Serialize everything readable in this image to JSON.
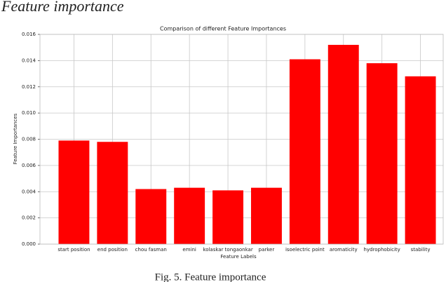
{
  "heading": "Feature importance",
  "caption": "Fig. 5. Feature importance",
  "chart_data": {
    "type": "bar",
    "title": "Comparison of different Feature Importances",
    "x_label": "Feature Labels",
    "y_label": "Feature Importances",
    "categories": [
      "start position",
      "end position",
      "chou fasman",
      "emini",
      "kolaskar tongaonkar",
      "parker",
      "isoelectric point",
      "aromaticity",
      "hydrophobicity",
      "stability"
    ],
    "values": [
      0.0079,
      0.0078,
      0.0042,
      0.0043,
      0.0041,
      0.0043,
      0.0141,
      0.0152,
      0.0138,
      0.0128
    ],
    "color": "#ff0000",
    "ylim": [
      0,
      0.016
    ],
    "yticks": [
      {
        "value": 0,
        "label": "0.000"
      },
      {
        "value": 0.002,
        "label": "0.002"
      },
      {
        "value": 0.004,
        "label": "0.004"
      },
      {
        "value": 0.006,
        "label": "0.006"
      },
      {
        "value": 0.008,
        "label": "0.008"
      },
      {
        "value": 0.01,
        "label": "0.010"
      },
      {
        "value": 0.012,
        "label": "0.012"
      },
      {
        "value": 0.014,
        "label": "0.014"
      },
      {
        "value": 0.016,
        "label": "0.016"
      }
    ],
    "grid": true
  }
}
